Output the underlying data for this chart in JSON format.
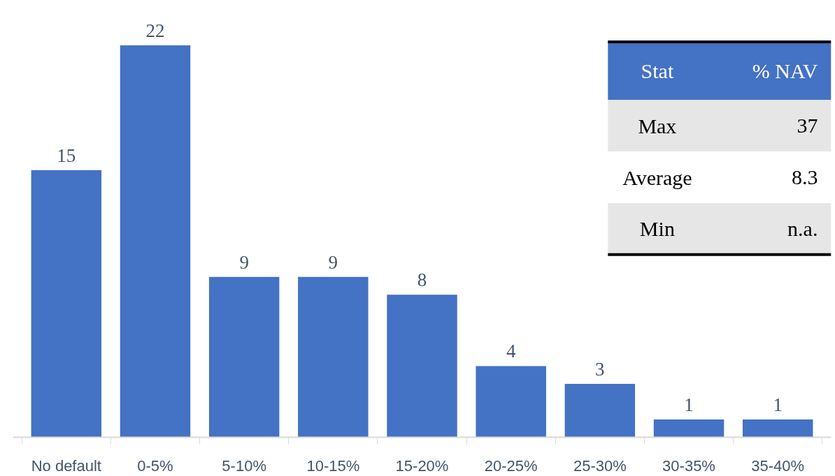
{
  "chart_data": {
    "type": "bar",
    "categories": [
      "No default",
      "0-5%",
      "5-10%",
      "10-15%",
      "15-20%",
      "20-25%",
      "25-30%",
      "30-35%",
      "35-40%"
    ],
    "values": [
      15,
      22,
      9,
      9,
      8,
      4,
      3,
      1,
      1
    ],
    "color": "#4472c4",
    "data_labels": true,
    "tick_labels": "x",
    "grid": false,
    "annotations": [
      "Stat",
      "% NAV",
      "Max",
      "37",
      "Average",
      "8.3",
      "Min",
      "n.a."
    ]
  }
}
